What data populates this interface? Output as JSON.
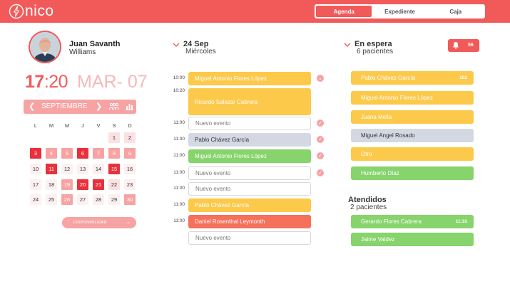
{
  "app": {
    "logo": "nico"
  },
  "nav": {
    "tabs": [
      "Agenda",
      "Expediente",
      "Caja"
    ],
    "active": "Agenda"
  },
  "user": {
    "first": "Juan Savanth",
    "last": "Williams"
  },
  "clock": {
    "hour": "17",
    "minute": ":20",
    "date": "MAR- 07"
  },
  "calendar": {
    "month": "SEPTIEMBRE",
    "weekdays": [
      "L",
      "M",
      "M",
      "J",
      "V",
      "S",
      "D"
    ],
    "days": [
      {
        "d": "1",
        "s": "light"
      },
      {
        "d": "2",
        "s": "light"
      },
      {
        "d": "3",
        "s": "dark"
      },
      {
        "d": "4",
        "s": "mid"
      },
      {
        "d": "5",
        "s": "mid"
      },
      {
        "d": "6",
        "s": "dark"
      },
      {
        "d": "7",
        "s": "mid"
      },
      {
        "d": "8",
        "s": "mid"
      },
      {
        "d": "9",
        "s": "mid"
      },
      {
        "d": "10",
        "s": "plain"
      },
      {
        "d": "11",
        "s": "dark"
      },
      {
        "d": "12",
        "s": "plain"
      },
      {
        "d": "13",
        "s": "plain"
      },
      {
        "d": "14",
        "s": "plain"
      },
      {
        "d": "15",
        "s": "dark"
      },
      {
        "d": "16",
        "s": "plain"
      },
      {
        "d": "17",
        "s": "plain"
      },
      {
        "d": "18",
        "s": "plain"
      },
      {
        "d": "19",
        "s": "mid"
      },
      {
        "d": "20",
        "s": "dark"
      },
      {
        "d": "21",
        "s": "dark"
      },
      {
        "d": "22",
        "s": "light"
      },
      {
        "d": "23",
        "s": "plain"
      },
      {
        "d": "24",
        "s": "plain"
      },
      {
        "d": "25",
        "s": "plain"
      },
      {
        "d": "26",
        "s": "mid"
      },
      {
        "d": "27",
        "s": "plain"
      },
      {
        "d": "28",
        "s": "plain"
      },
      {
        "d": "29",
        "s": "plain"
      },
      {
        "d": "30",
        "s": "mid"
      }
    ],
    "availability": "DISPONIBILIDAD"
  },
  "agenda": {
    "title": "24 Sep",
    "weekday": "Miércoles",
    "slots": [
      {
        "time": "10:00",
        "label": "Miguel Antonio Flores López",
        "style": "yellow",
        "icon": "pin"
      },
      {
        "time": "10:20",
        "label": "Ricardo Salazar Cabrera",
        "style": "yellow tall",
        "icon": ""
      },
      {
        "time": "11:00",
        "label": "Nuevo evento",
        "style": "empty",
        "icon": "check"
      },
      {
        "time": "11:00",
        "label": "Pablo Chávez García",
        "style": "gray",
        "icon": "check"
      },
      {
        "time": "11:00",
        "label": "Miguel Antonio Flores López",
        "style": "green",
        "icon": "check"
      },
      {
        "time": "11:00",
        "label": "Nuevo evento",
        "style": "empty",
        "icon": "check"
      },
      {
        "time": "11:00",
        "label": "Nuevo evento",
        "style": "empty",
        "icon": ""
      },
      {
        "time": "11:00",
        "label": "Pablo Chávez García",
        "style": "yellow",
        "icon": ""
      },
      {
        "time": "11:00",
        "label": "Daniel Rosenthal Leymonth",
        "style": "orange",
        "icon": ""
      },
      {
        "time": "",
        "label": "Nuevo evento",
        "style": "empty",
        "icon": ""
      }
    ]
  },
  "waiting": {
    "title": "En espera",
    "subtitle": "6 pacientes",
    "notifications": "56",
    "items": [
      {
        "label": "Pablo Chávez García",
        "style": "yellow",
        "tail": "102"
      },
      {
        "label": "Miguel Antonio Flores López",
        "style": "yellow",
        "tail": ""
      },
      {
        "label": "Juana Mella",
        "style": "yellow",
        "tail": ""
      },
      {
        "label": "Miguel Angel Rosado",
        "style": "gray",
        "tail": ""
      },
      {
        "label": "Otro",
        "style": "yellow",
        "tail": ""
      },
      {
        "label": "Humberto Díaz",
        "style": "green",
        "tail": ""
      }
    ]
  },
  "attended": {
    "title": "Atendidos",
    "subtitle": "2 pacientes",
    "items": [
      {
        "label": "Gerardo Flores Cabrera",
        "style": "green",
        "tail": "11:33"
      },
      {
        "label": "Jaime Valdez",
        "style": "green",
        "tail": ""
      }
    ]
  },
  "colors": {
    "brand": "#f25a5a",
    "yellow": "#fcc94a",
    "green": "#86d46b",
    "gray": "#d4d8e2",
    "orange": "#f7705a"
  }
}
